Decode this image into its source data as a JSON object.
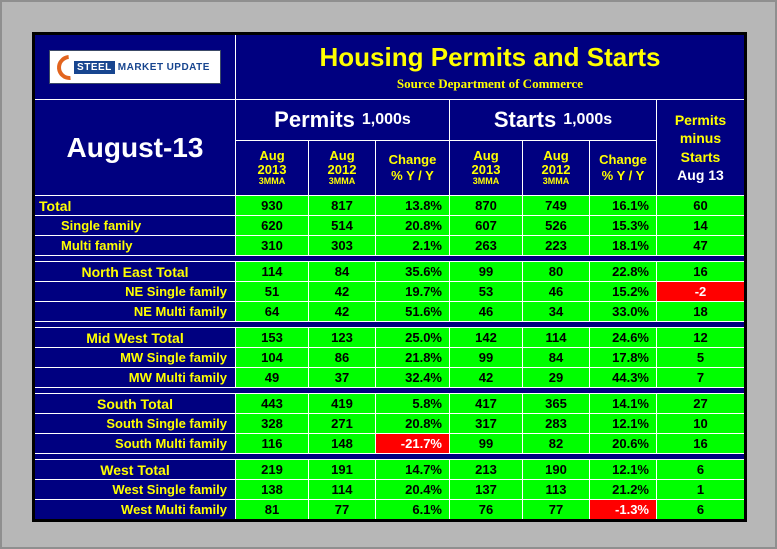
{
  "logo": {
    "steel": "STEEL",
    "market": "MARKET",
    "update": "UPDATE"
  },
  "title": "Housing Permits and Starts",
  "subtitle": "Source Department of Commerce",
  "period": "August-13",
  "labels": {
    "permits": "Permits",
    "starts": "Starts",
    "thousands": "1,000s",
    "aug": "Aug",
    "y2013": "2013",
    "y2012": "2012",
    "mma": "3MMA",
    "change": "Change",
    "yoy": "% Y / Y",
    "diff1": "Permits",
    "diff2": "minus",
    "diff3": "Starts",
    "diff4": "Aug 13"
  },
  "chart_data": {
    "type": "table",
    "title": "Housing Permits and Starts",
    "source": "Source Department of Commerce",
    "period": "August-13",
    "column_groups": [
      "Permits 1,000s",
      "Starts 1,000s",
      "Permits minus Starts Aug 13"
    ],
    "columns": [
      "Aug 2013 3MMA",
      "Aug 2012 3MMA",
      "Change % Y / Y",
      "Aug 2013 3MMA",
      "Aug 2012 3MMA",
      "Change % Y / Y",
      "Permits minus Starts Aug 13"
    ],
    "rows": [
      {
        "label": "Total",
        "p2013": "930",
        "p2012": "817",
        "pchg": "13.8%",
        "s2013": "870",
        "s2012": "749",
        "schg": "16.1%",
        "diff": "60"
      },
      {
        "label": "Single family",
        "p2013": "620",
        "p2012": "514",
        "pchg": "20.8%",
        "s2013": "607",
        "s2012": "526",
        "schg": "15.3%",
        "diff": "14"
      },
      {
        "label": "Multi family",
        "p2013": "310",
        "p2012": "303",
        "pchg": "2.1%",
        "s2013": "263",
        "s2012": "223",
        "schg": "18.1%",
        "diff": "47"
      },
      {
        "label": "North East Total",
        "p2013": "114",
        "p2012": "84",
        "pchg": "35.6%",
        "s2013": "99",
        "s2012": "80",
        "schg": "22.8%",
        "diff": "16"
      },
      {
        "label": "NE Single family",
        "p2013": "51",
        "p2012": "42",
        "pchg": "19.7%",
        "s2013": "53",
        "s2012": "46",
        "schg": "15.2%",
        "diff": "-2"
      },
      {
        "label": "NE Multi family",
        "p2013": "64",
        "p2012": "42",
        "pchg": "51.6%",
        "s2013": "46",
        "s2012": "34",
        "schg": "33.0%",
        "diff": "18"
      },
      {
        "label": "Mid West Total",
        "p2013": "153",
        "p2012": "123",
        "pchg": "25.0%",
        "s2013": "142",
        "s2012": "114",
        "schg": "24.6%",
        "diff": "12"
      },
      {
        "label": "MW Single family",
        "p2013": "104",
        "p2012": "86",
        "pchg": "21.8%",
        "s2013": "99",
        "s2012": "84",
        "schg": "17.8%",
        "diff": "5"
      },
      {
        "label": "MW Multi family",
        "p2013": "49",
        "p2012": "37",
        "pchg": "32.4%",
        "s2013": "42",
        "s2012": "29",
        "schg": "44.3%",
        "diff": "7"
      },
      {
        "label": "South Total",
        "p2013": "443",
        "p2012": "419",
        "pchg": "5.8%",
        "s2013": "417",
        "s2012": "365",
        "schg": "14.1%",
        "diff": "27"
      },
      {
        "label": "South Single family",
        "p2013": "328",
        "p2012": "271",
        "pchg": "20.8%",
        "s2013": "317",
        "s2012": "283",
        "schg": "12.1%",
        "diff": "10"
      },
      {
        "label": "South Multi family",
        "p2013": "116",
        "p2012": "148",
        "pchg": "-21.7%",
        "s2013": "99",
        "s2012": "82",
        "schg": "20.6%",
        "diff": "16"
      },
      {
        "label": "West Total",
        "p2013": "219",
        "p2012": "191",
        "pchg": "14.7%",
        "s2013": "213",
        "s2012": "190",
        "schg": "12.1%",
        "diff": "6"
      },
      {
        "label": "West Single family",
        "p2013": "138",
        "p2012": "114",
        "pchg": "20.4%",
        "s2013": "137",
        "s2012": "113",
        "schg": "21.2%",
        "diff": "1"
      },
      {
        "label": "West Multi family",
        "p2013": "81",
        "p2012": "77",
        "pchg": "6.1%",
        "s2013": "76",
        "s2012": "77",
        "schg": "-1.3%",
        "diff": "6"
      }
    ],
    "colors": {
      "navy": "#000080",
      "green": "#00ff00",
      "red": "#ff0000",
      "yellow": "#ffff00"
    }
  }
}
